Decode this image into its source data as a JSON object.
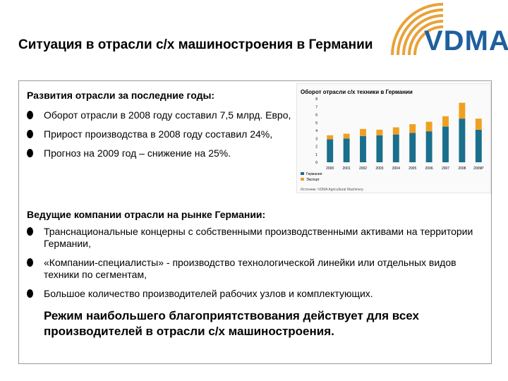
{
  "title": "Ситуация в отрасли с/х машиностроения в Германии",
  "logo": {
    "text": "VDMA"
  },
  "section1": {
    "heading": "Развития отрасли за последние годы:",
    "bullets": [
      "Оборот отрасли в 2008 году составил 7,5 млрд. Евро,",
      "Прирост производства в 2008 году составил 24%,",
      "Прогноз на 2009 год – снижение на 25%."
    ]
  },
  "section2": {
    "heading": "Ведущие компании отрасли на рынке Германии:",
    "bullets": [
      "Транснациональные концерны с собственными производственными активами на территории Германии,",
      "«Компании-специалисты» - производство технологической линейки или отдельных видов техники по сегментам,",
      "Большое количество производителей рабочих узлов и комплектующих."
    ]
  },
  "conclusion": "Режим наибольшего благоприятствования действует для всех производителей в отрасли с/х машиностроения.",
  "colors": {
    "accent_logo": "#1f5f9e",
    "logo_arcs": "#e8a23a",
    "bar_domestic": "#1a6f8c",
    "bar_export": "#f0a020"
  },
  "chart_data": {
    "type": "bar",
    "title": "Оборот отрасли с/х техники в Германии",
    "categories": [
      "2000",
      "2001",
      "2002",
      "2003",
      "2004",
      "2005",
      "2006",
      "2007",
      "2008",
      "2009P"
    ],
    "series": [
      {
        "name": "Германия",
        "values": [
          2.9,
          3.0,
          3.3,
          3.4,
          3.5,
          3.7,
          3.9,
          4.5,
          5.5,
          4.1
        ]
      },
      {
        "name": "Экспорт",
        "values": [
          0.5,
          0.6,
          0.9,
          0.7,
          0.9,
          1.1,
          1.2,
          1.3,
          2.0,
          1.4
        ]
      }
    ],
    "ylim": [
      0,
      8
    ],
    "yticks": [
      "0",
      "1",
      "2",
      "3",
      "4",
      "5",
      "6",
      "7",
      "8"
    ],
    "source": "Источник: VDMA Agricultural Machinery",
    "grid": false,
    "legend": "bottom-left"
  }
}
